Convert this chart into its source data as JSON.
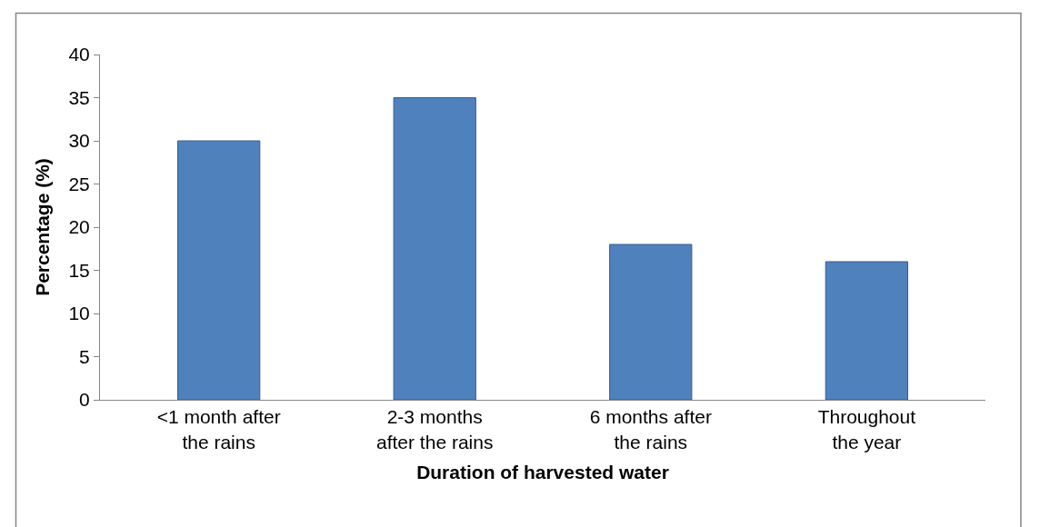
{
  "chart_data": {
    "type": "bar",
    "categories": [
      "<1 month after\nthe rains",
      "2-3 months\nafter the rains",
      "6 months after\nthe rains",
      "Throughout\nthe year"
    ],
    "values": [
      30,
      35,
      18,
      16
    ],
    "color": "#4f81bd",
    "xlabel": "Duration of harvested water",
    "ylabel": "Percentage (%)",
    "ylim": [
      0,
      40
    ],
    "yticks": [
      0,
      5,
      10,
      15,
      20,
      25,
      30,
      35,
      40
    ]
  }
}
